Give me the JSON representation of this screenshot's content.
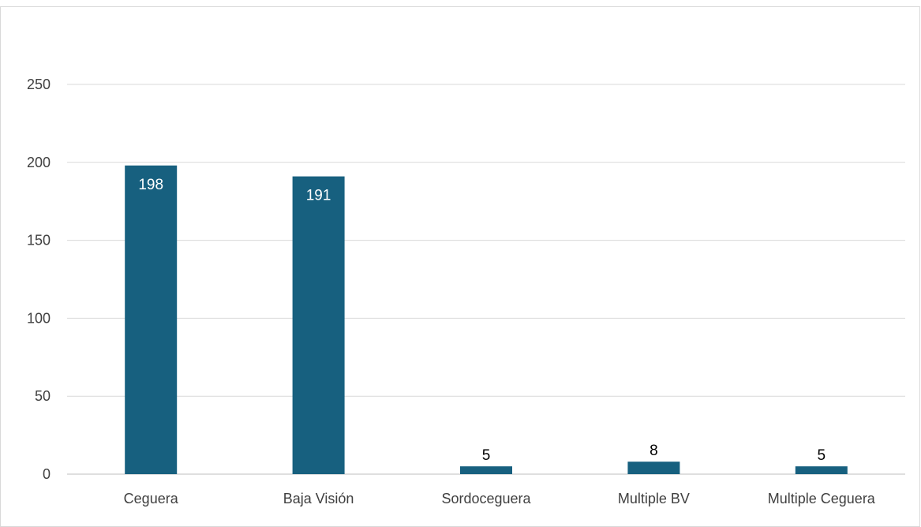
{
  "chart_data": {
    "type": "bar",
    "categories": [
      "Ceguera",
      "Baja Visión",
      "Sordoceguera",
      "Multiple BV",
      "Multiple Ceguera"
    ],
    "values": [
      198,
      191,
      5,
      8,
      5
    ],
    "data_labels": [
      "198",
      "191",
      "5",
      "8",
      "5"
    ],
    "title": "",
    "xlabel": "",
    "ylabel": "",
    "ylim": [
      0,
      250
    ],
    "yticks": [
      0,
      50,
      100,
      150,
      200,
      250
    ],
    "ytick_labels": [
      "0",
      "50",
      "100",
      "150",
      "200",
      "250"
    ],
    "grid": true,
    "legend": "none",
    "bar_color": "#17607f",
    "grid_color": "#d9d9d9",
    "label_inside_color": "#ffffff",
    "label_outside_color": "#000000"
  }
}
